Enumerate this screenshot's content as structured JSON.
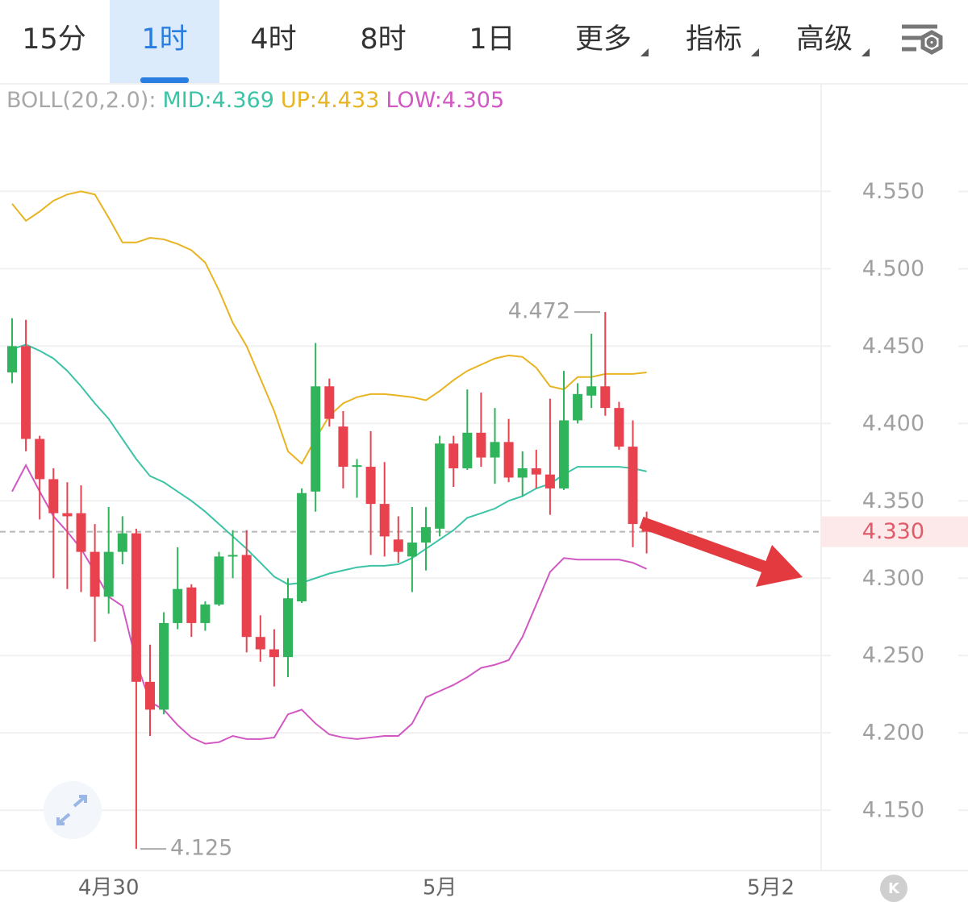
{
  "tabs": [
    "15分",
    "1时",
    "4时",
    "8时",
    "1日",
    "更多",
    "指标",
    "高级"
  ],
  "active_tab": "1时",
  "badge": "K",
  "chart_data": {
    "type": "candlestick",
    "indicator": "BOLL(20,2.0):",
    "categories": [
      null,
      null,
      null,
      null,
      null,
      null,
      null,
      "4月30",
      null,
      null,
      null,
      null,
      null,
      null,
      null,
      null,
      null,
      null,
      null,
      null,
      null,
      null,
      null,
      null,
      null,
      null,
      null,
      null,
      null,
      null,
      null,
      "5月",
      null,
      null,
      null,
      null,
      null,
      null,
      null,
      null,
      null,
      null,
      null,
      null,
      null,
      null,
      null,
      null,
      null,
      null,
      null,
      null,
      null,
      null,
      null,
      "5月2"
    ],
    "open": [
      4.433,
      4.45,
      4.39,
      4.364,
      4.342,
      4.342,
      4.317,
      4.288,
      4.317,
      4.329,
      4.233,
      4.215,
      4.271,
      4.294,
      4.271,
      4.283,
      4.314,
      4.315,
      4.262,
      4.254,
      4.249,
      4.285,
      4.356,
      4.424,
      4.398,
      4.372,
      4.372,
      4.348,
      4.325,
      4.314,
      4.323,
      4.332,
      4.387,
      4.371,
      4.394,
      4.378,
      4.388,
      4.365,
      4.371,
      4.367,
      4.358,
      4.402,
      4.418,
      4.424,
      4.41,
      4.385,
      4.335,
      null,
      null,
      null,
      null,
      null,
      null,
      null,
      null,
      null
    ],
    "high": [
      4.468,
      4.467,
      4.392,
      4.371,
      4.362,
      4.36,
      4.335,
      4.346,
      4.34,
      4.332,
      4.257,
      4.278,
      4.32,
      4.296,
      4.285,
      4.317,
      4.331,
      4.331,
      4.276,
      4.267,
      4.3,
      4.358,
      4.452,
      4.429,
      4.408,
      4.377,
      4.395,
      4.375,
      4.34,
      4.346,
      4.346,
      4.392,
      4.392,
      4.422,
      4.42,
      4.41,
      4.403,
      4.382,
      4.383,
      4.416,
      4.434,
      4.426,
      4.458,
      4.472,
      4.414,
      4.402,
      4.343,
      null,
      null,
      null,
      null,
      null,
      null,
      null,
      null,
      null
    ],
    "low": [
      4.426,
      4.382,
      4.338,
      4.3,
      4.293,
      4.291,
      4.259,
      4.277,
      4.309,
      4.125,
      4.198,
      4.212,
      4.267,
      4.262,
      4.266,
      4.282,
      4.3,
      4.252,
      4.246,
      4.23,
      4.236,
      4.284,
      4.343,
      4.398,
      4.358,
      4.352,
      4.315,
      4.314,
      4.31,
      4.291,
      4.305,
      4.327,
      4.359,
      4.37,
      4.372,
      4.361,
      4.362,
      4.353,
      4.358,
      4.341,
      4.357,
      4.4,
      4.41,
      4.405,
      4.383,
      4.32,
      4.316,
      null,
      null,
      null,
      null,
      null,
      null,
      null,
      null,
      null
    ],
    "close": [
      4.45,
      4.39,
      4.364,
      4.342,
      4.34,
      4.317,
      4.288,
      4.317,
      4.329,
      4.233,
      4.215,
      4.271,
      4.293,
      4.271,
      4.283,
      4.314,
      4.315,
      4.262,
      4.254,
      4.249,
      4.287,
      4.355,
      4.424,
      4.403,
      4.372,
      4.373,
      4.348,
      4.327,
      4.317,
      4.323,
      4.333,
      4.387,
      4.371,
      4.394,
      4.378,
      4.388,
      4.365,
      4.371,
      4.367,
      4.358,
      4.402,
      4.419,
      4.424,
      4.41,
      4.385,
      4.335,
      4.33,
      null,
      null,
      null,
      null,
      null,
      null,
      null,
      null,
      null
    ],
    "up_color": "#2fb35b",
    "down_color": "#e8424f",
    "series": [
      {
        "name": "MID:4.369",
        "color": "#3cc3a6",
        "values": [
          4.448,
          4.451,
          4.447,
          4.442,
          4.434,
          4.424,
          4.413,
          4.403,
          4.39,
          4.377,
          4.366,
          4.362,
          4.356,
          4.35,
          4.343,
          4.335,
          4.327,
          4.319,
          4.31,
          4.301,
          4.296,
          4.297,
          4.3,
          4.303,
          4.305,
          4.307,
          4.308,
          4.308,
          4.309,
          4.313,
          4.319,
          4.325,
          4.331,
          4.339,
          4.342,
          4.345,
          4.35,
          4.353,
          4.358,
          4.361,
          4.367,
          4.372,
          4.372,
          4.372,
          4.372,
          4.371,
          4.369,
          null,
          null,
          null,
          null,
          null,
          null,
          null,
          null,
          null
        ]
      },
      {
        "name": "UP:4.433",
        "color": "#e8b422",
        "values": [
          4.542,
          4.531,
          4.537,
          4.544,
          4.548,
          4.55,
          4.548,
          4.533,
          4.517,
          4.517,
          4.52,
          4.519,
          4.516,
          4.512,
          4.504,
          4.486,
          4.465,
          4.45,
          4.429,
          4.408,
          4.382,
          4.374,
          4.39,
          4.405,
          4.413,
          4.417,
          4.419,
          4.419,
          4.418,
          4.417,
          4.415,
          4.421,
          4.428,
          4.434,
          4.438,
          4.442,
          4.444,
          4.443,
          4.436,
          4.424,
          4.422,
          4.43,
          4.43,
          4.432,
          4.432,
          4.432,
          4.433,
          null,
          null,
          null,
          null,
          null,
          null,
          null,
          null,
          null
        ]
      },
      {
        "name": "LOW:4.305",
        "color": "#d158c2",
        "values": [
          4.356,
          4.373,
          4.356,
          4.34,
          4.33,
          4.319,
          4.304,
          4.288,
          4.282,
          4.246,
          4.22,
          4.215,
          4.205,
          4.197,
          4.193,
          4.194,
          4.198,
          4.196,
          4.196,
          4.197,
          4.212,
          4.215,
          4.206,
          4.199,
          4.197,
          4.196,
          4.197,
          4.198,
          4.198,
          4.206,
          4.223,
          4.227,
          4.231,
          4.236,
          4.242,
          4.244,
          4.247,
          4.262,
          4.283,
          4.304,
          4.313,
          4.312,
          4.312,
          4.312,
          4.312,
          4.31,
          4.306,
          null,
          null,
          null,
          null,
          null,
          null,
          null,
          null,
          null
        ]
      }
    ],
    "ylim": [
      4.111,
      4.619
    ],
    "yticks": [
      {
        "value": 4.15,
        "label": "4.150"
      },
      {
        "value": 4.2,
        "label": "4.200"
      },
      {
        "value": 4.25,
        "label": "4.250"
      },
      {
        "value": 4.3,
        "label": "4.300"
      },
      {
        "value": 4.35,
        "label": "4.350"
      },
      {
        "value": 4.4,
        "label": "4.400"
      },
      {
        "value": 4.45,
        "label": "4.450"
      },
      {
        "value": 4.5,
        "label": "4.500"
      },
      {
        "value": 4.55,
        "label": "4.550"
      }
    ],
    "current_price": {
      "value": 4.33,
      "label": "4.330"
    },
    "annotations": [
      {
        "value": 4.472,
        "label": "4.472"
      },
      {
        "value": 4.125,
        "label": "4.125"
      }
    ],
    "grid": true
  }
}
